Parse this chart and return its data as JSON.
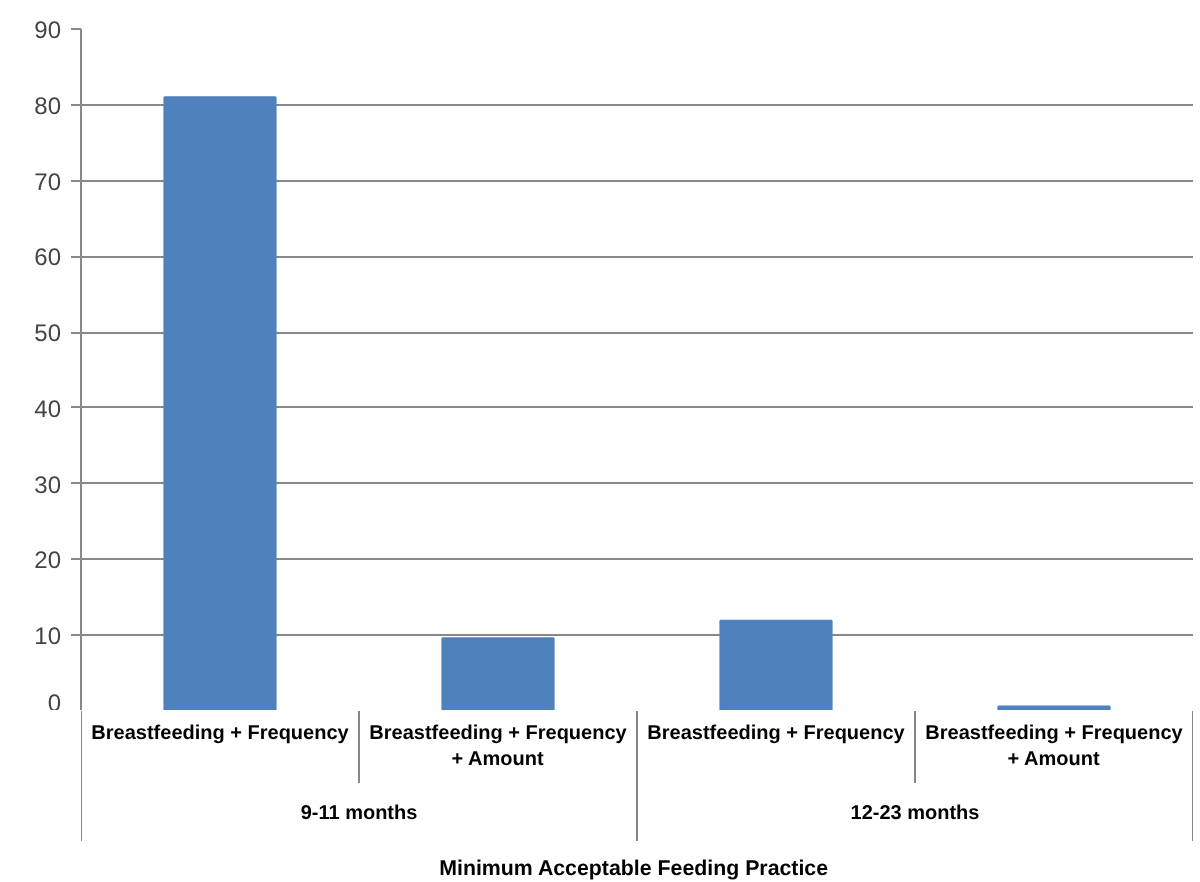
{
  "chart_data": {
    "type": "bar",
    "xlabel": "Minimum  Acceptable Feeding Practice",
    "categories": [
      "Breastfeeding + Frequency",
      "Breastfeeding + Frequency + Amount",
      "Breastfeeding + Frequency",
      "Breastfeeding + Frequency + Amount"
    ],
    "values": [
      81,
      9.6,
      11.9,
      0.6
    ],
    "color": "#4f81bd",
    "annotations": [
      "9-11 months",
      "12-23 months"
    ],
    "ylim": [
      0,
      90
    ],
    "yticks": [
      0,
      10,
      20,
      30,
      40,
      50,
      60,
      70,
      80,
      90
    ],
    "grid": "y"
  }
}
